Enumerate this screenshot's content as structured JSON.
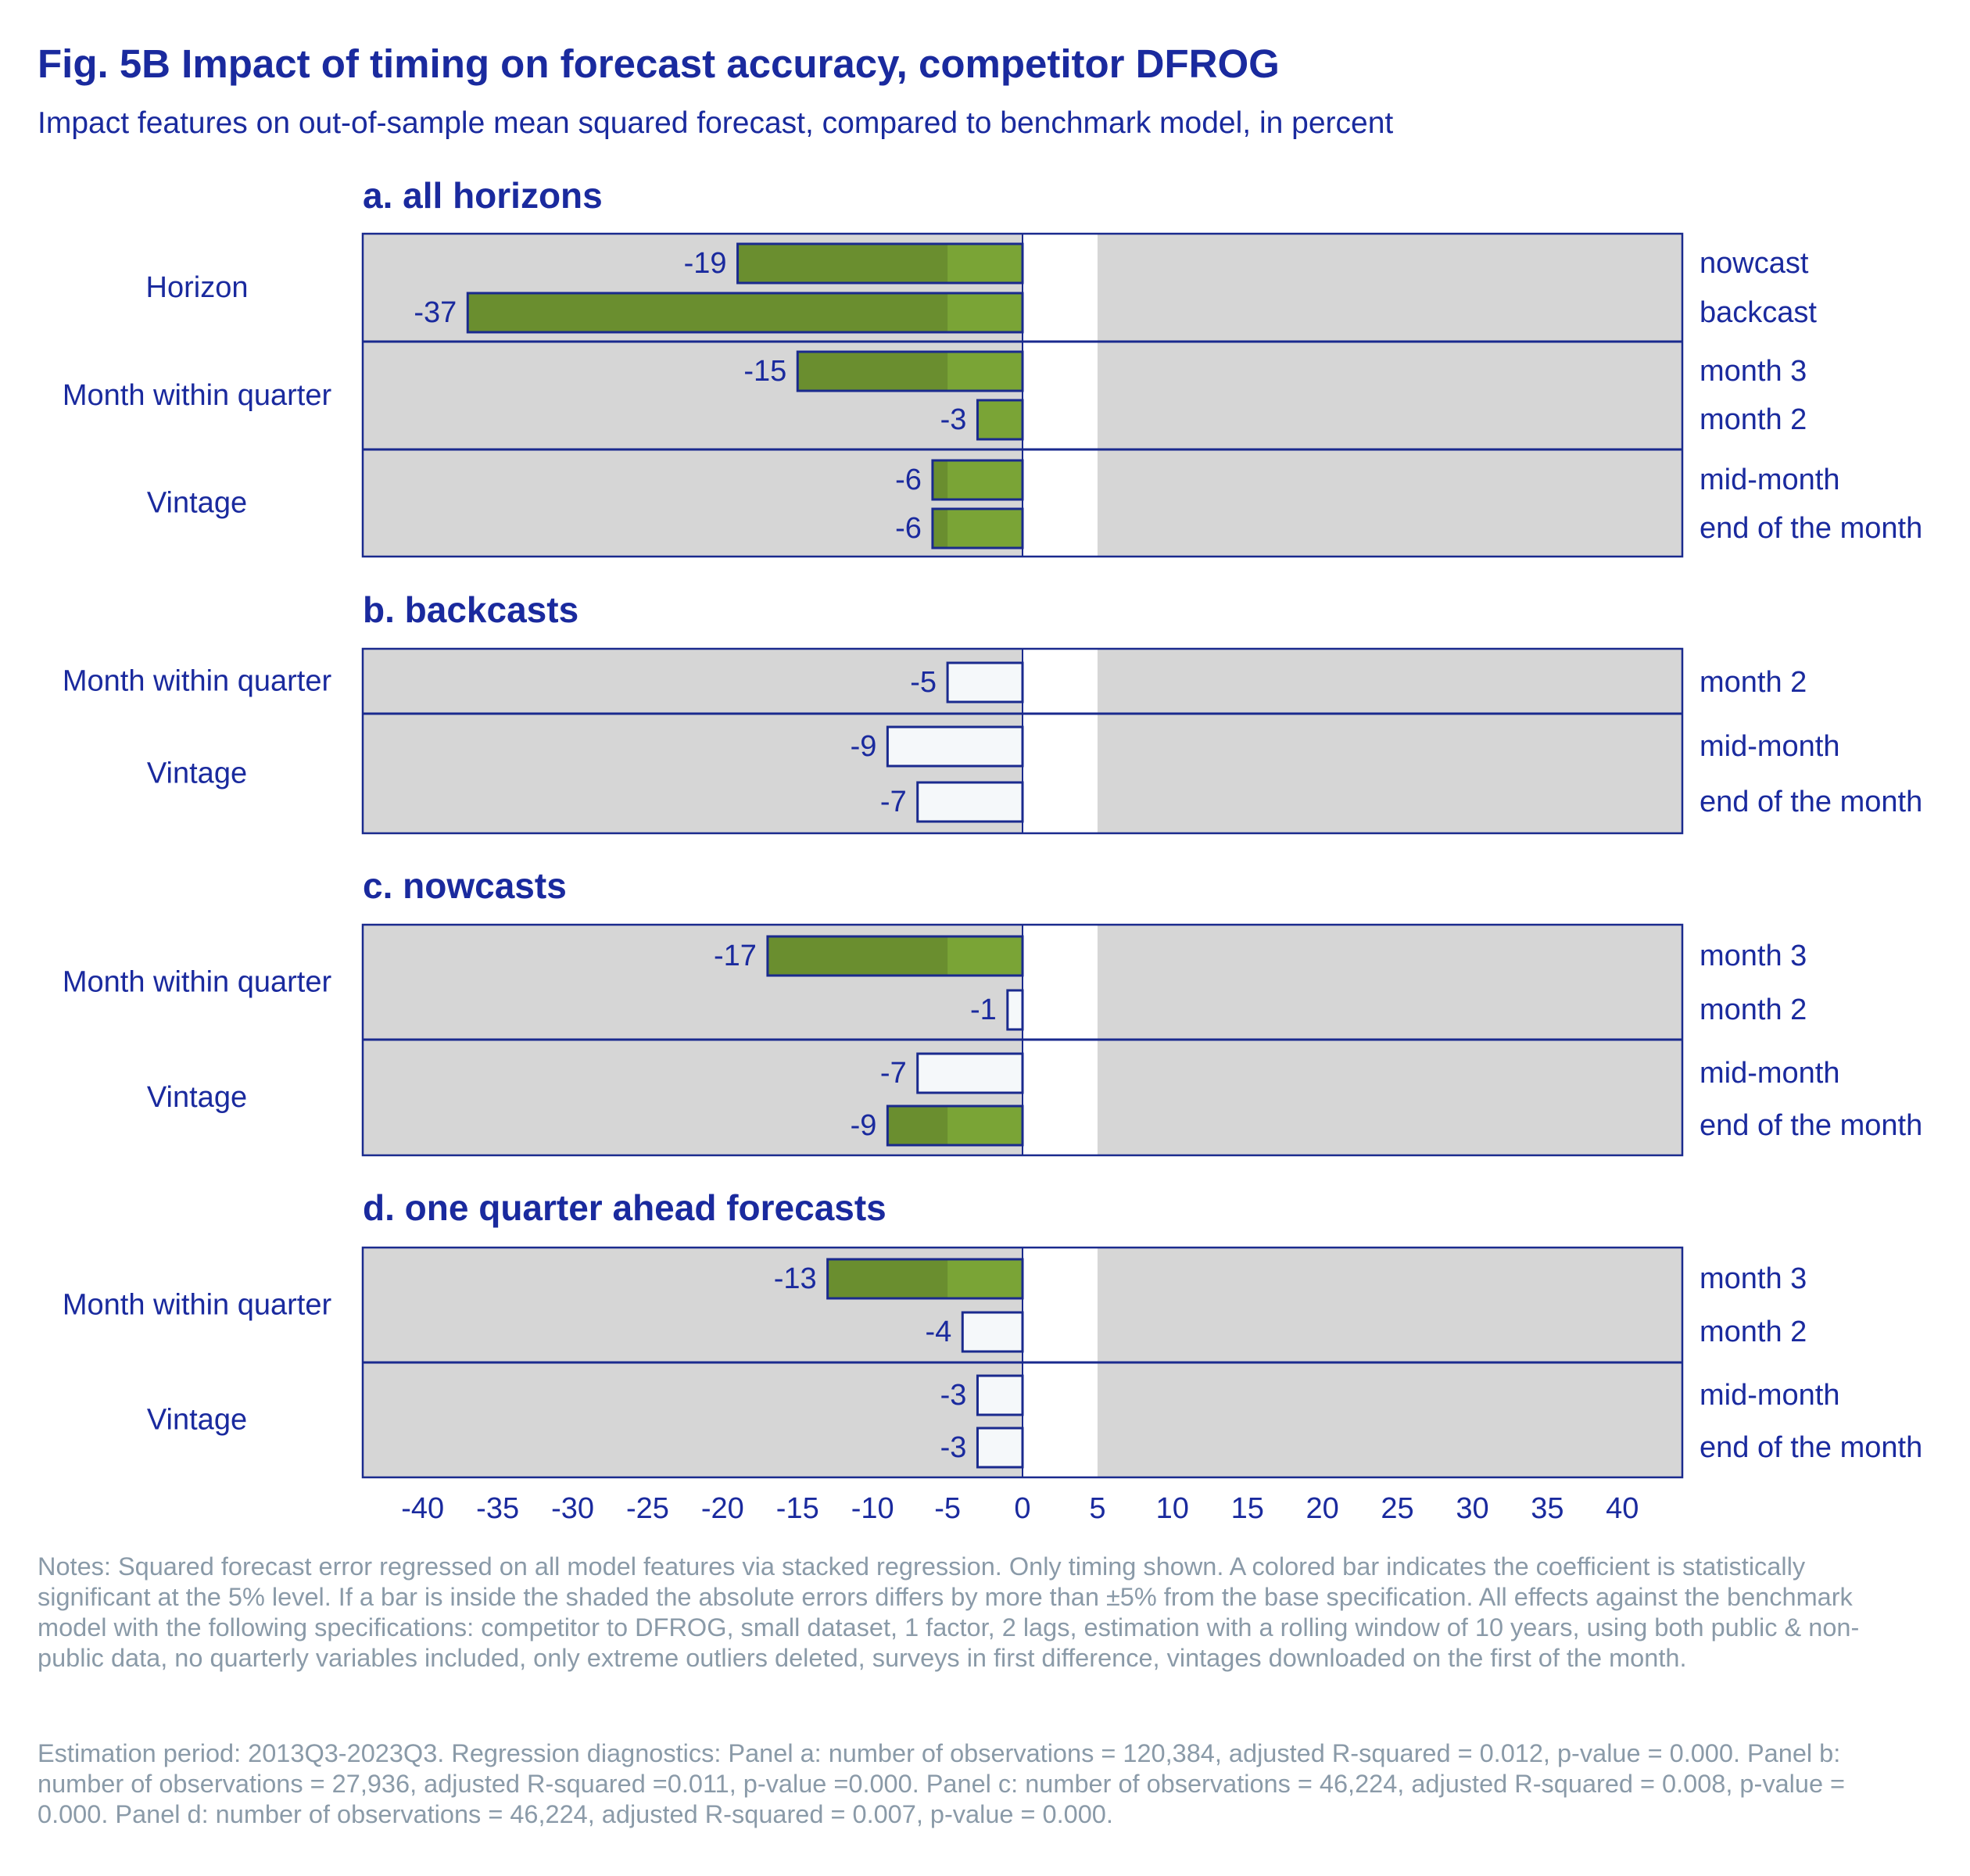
{
  "title": "Fig. 5B Impact of timing on forecast accuracy, competitor DFROG",
  "subtitle": "Impact features on out-of-sample mean squared forecast, compared to benchmark model, in percent",
  "chart_data": {
    "type": "bar",
    "orientation": "horizontal",
    "xlim": [
      -44,
      44
    ],
    "x_ticks": [
      "-40",
      "-35",
      "-30",
      "-25",
      "-20",
      "-15",
      "-10",
      "-5",
      "0",
      "5",
      "10",
      "15",
      "20",
      "25",
      "30",
      "35",
      "40"
    ],
    "shaded_band": [
      -5,
      5
    ],
    "colors": {
      "significant": "#7aa436",
      "not_significant": "#f5f8fa",
      "border": "#1a2a8e",
      "shade": "#d6d6d6",
      "text": "#1a2a9e",
      "notes": "#8a9aa8"
    },
    "legend": "colored bar = statistically significant at the 5% level",
    "panels": [
      {
        "title": "a. all horizons",
        "groups": [
          {
            "name": "Horizon",
            "bars": [
              {
                "label": "nowcast",
                "value": -19,
                "value_label": "-19",
                "significant": true
              },
              {
                "label": "backcast",
                "value": -37,
                "value_label": "-37",
                "significant": true
              }
            ]
          },
          {
            "name": "Month within quarter",
            "bars": [
              {
                "label": "month 3",
                "value": -15,
                "value_label": "-15",
                "significant": true
              },
              {
                "label": "month 2",
                "value": -3,
                "value_label": "-3",
                "significant": true
              }
            ]
          },
          {
            "name": "Vintage",
            "bars": [
              {
                "label": "mid-month",
                "value": -6,
                "value_label": "-6",
                "significant": true
              },
              {
                "label": "end of the month",
                "value": -6,
                "value_label": "-6",
                "significant": true
              }
            ]
          }
        ]
      },
      {
        "title": "b. backcasts",
        "groups": [
          {
            "name": "Month within quarter",
            "bars": [
              {
                "label": "month 2",
                "value": -5,
                "value_label": "-5",
                "significant": false
              }
            ]
          },
          {
            "name": "Vintage",
            "bars": [
              {
                "label": "mid-month",
                "value": -9,
                "value_label": "-9",
                "significant": false
              },
              {
                "label": "end of the month",
                "value": -7,
                "value_label": "-7",
                "significant": false
              }
            ]
          }
        ]
      },
      {
        "title": "c. nowcasts",
        "groups": [
          {
            "name": "Month within quarter",
            "bars": [
              {
                "label": "month 3",
                "value": -17,
                "value_label": "-17",
                "significant": true
              },
              {
                "label": "month 2",
                "value": -1,
                "value_label": "-1",
                "significant": false
              }
            ]
          },
          {
            "name": "Vintage",
            "bars": [
              {
                "label": "mid-month",
                "value": -7,
                "value_label": "-7",
                "significant": false
              },
              {
                "label": "end of the month",
                "value": -9,
                "value_label": "-9",
                "significant": true
              }
            ]
          }
        ]
      },
      {
        "title": "d. one quarter ahead forecasts",
        "groups": [
          {
            "name": "Month within quarter",
            "bars": [
              {
                "label": "month 3",
                "value": -13,
                "value_label": "-13",
                "significant": true
              },
              {
                "label": "month 2",
                "value": -4,
                "value_label": "-4",
                "significant": false
              }
            ]
          },
          {
            "name": "Vintage",
            "bars": [
              {
                "label": "mid-month",
                "value": -3,
                "value_label": "-3",
                "significant": false
              },
              {
                "label": "end of the month",
                "value": -3,
                "value_label": "-3",
                "significant": false
              }
            ]
          }
        ]
      }
    ]
  },
  "notes": "Notes: Squared forecast error regressed on all model features via stacked regression. Only timing shown. A colored bar indicates the coefficient is statistically significant at the 5% level. If a bar is inside the shaded the absolute errors differs by more than ±5% from the base specification. All effects against the benchmark model with the following specifications: competitor to DFROG, small dataset, 1 factor, 2 lags, estimation with a rolling window of 10 years, using both public & non-public data, no quarterly variables included, only extreme outliers deleted, surveys in first difference, vintages downloaded on the first of the month.",
  "diagnostics": " Estimation period: 2013Q3-2023Q3. Regression diagnostics: Panel a: number of observations = 120,384, adjusted R-squared = 0.012, p-value = 0.000. Panel b: number of observations = 27,936, adjusted R-squared =0.011, p-value =0.000. Panel c: number of observations = 46,224, adjusted R-squared = 0.008, p-value = 0.000. Panel d: number of observations = 46,224, adjusted R-squared = 0.007, p-value = 0.000."
}
